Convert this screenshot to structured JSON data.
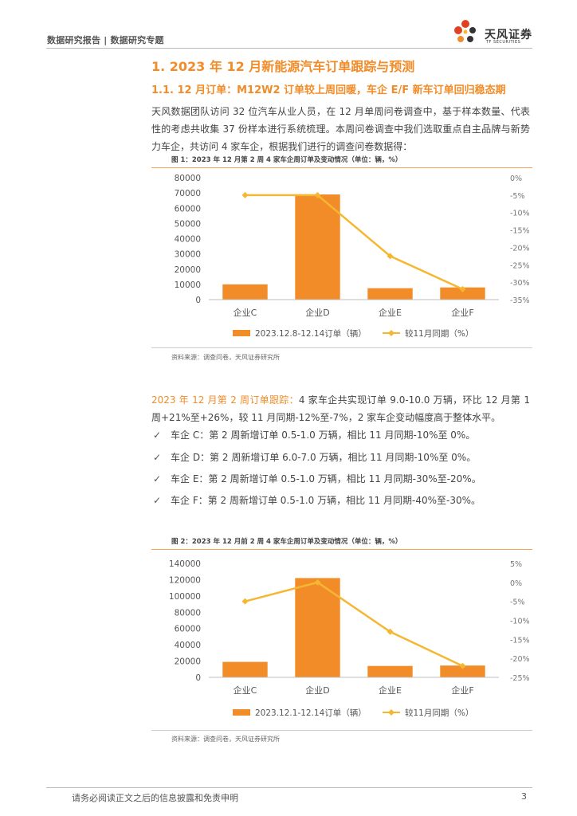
{
  "header": {
    "left_text": "数据研究报告 | 数据研究专题",
    "logo_text": "天风证券",
    "logo_sub": "TF SECURITIES"
  },
  "section": {
    "title": "1. 2023 年 12 月新能源汽车订单跟踪与预测",
    "subtitle": "1.1. 12 月订单：M12W2 订单较上周回暖，车企 E/F 新车订单回归稳态期",
    "paragraph": "天风数据团队访问 32 位汽车从业人员，在 12 月单周问卷调查中，基于样本数量、代表性的考虑共收集 37 份样本进行系统梳理。本周问卷调查中我们选取重点自主品牌与新势力车企，共访问 4 家车企，根据我们进行的调查问卷数据得："
  },
  "figure1": {
    "title": "图 1：2023 年 12 月第 2 周 4 家车企周订单及变动情况（单位：辆，%）",
    "source": "资料来源：调查问卷，天风证券研究所"
  },
  "summary": {
    "highlight": "2023 年 12 月第 2 周订单跟踪：",
    "text": "4 家车企共实现订单 9.0-10.0 万辆，环比 12 月第 1 周+21%至+26%，较 11 月同期-12%至-7%，2 家车企变动幅度高于整体水平。"
  },
  "bullets": [
    {
      "check": "✓",
      "text": "车企 C：第 2 周新增订单 0.5-1.0 万辆，相比 11 月同期-10%至 0%。"
    },
    {
      "check": "✓",
      "text": "车企 D：第 2 周新增订单 6.0-7.0 万辆，相比 11 月同期-10%至 0%。"
    },
    {
      "check": "✓",
      "text": "车企 E：第 2 周新增订单 0.5-1.0 万辆，相比 11 月同期-30%至-20%。"
    },
    {
      "check": "✓",
      "text": "车企 F：第 2 周新增订单 0.5-1.0 万辆，相比 11 月同期-40%至-30%。"
    }
  ],
  "figure2": {
    "title": "图 2：2023 年 12 月前 2 周 4 家车企周订单及变动情况（单位：辆，%）",
    "source": "资料来源：调查问卷，天风证券研究所"
  },
  "footer": {
    "disclaimer": "请务必阅读正文之后的信息披露和免责申明",
    "page": "3"
  },
  "colors": {
    "accent": "#f28c28",
    "bar": "#f28c28",
    "line": "#f5b731"
  },
  "chart_data": [
    {
      "type": "bar",
      "categories": [
        "企业C",
        "企业D",
        "企业E",
        "企业F"
      ],
      "series": [
        {
          "name": "2023.12.8-12.14订单（辆）",
          "type": "bar",
          "axis": "left",
          "values": [
            10000,
            69000,
            7500,
            8000
          ]
        },
        {
          "name": "较11月同期（%）",
          "type": "line",
          "axis": "right",
          "values": [
            -5,
            -5,
            -22.5,
            -32
          ]
        }
      ],
      "ylim": [
        0,
        80000
      ],
      "yticks": [
        "80000",
        "70000",
        "60000",
        "50000",
        "40000",
        "30000",
        "20000",
        "10000",
        "0"
      ],
      "y2lim": [
        -35,
        0
      ],
      "y2ticks": [
        "0%",
        "-5%",
        "-10%",
        "-15%",
        "-20%",
        "-25%",
        "-30%",
        "-35%"
      ],
      "legend": "bottom"
    },
    {
      "type": "bar",
      "categories": [
        "企业C",
        "企业D",
        "企业E",
        "企业F"
      ],
      "series": [
        {
          "name": "2023.12.1-12.14订单（辆）",
          "type": "bar",
          "axis": "left",
          "values": [
            19000,
            122000,
            14000,
            14500
          ]
        },
        {
          "name": "较11月同期（%）",
          "type": "line",
          "axis": "right",
          "values": [
            -5,
            0,
            -13,
            -22
          ]
        }
      ],
      "ylim": [
        0,
        140000
      ],
      "yticks": [
        "140000",
        "120000",
        "100000",
        "80000",
        "60000",
        "40000",
        "20000",
        "0"
      ],
      "y2lim": [
        -25,
        5
      ],
      "y2ticks": [
        "5%",
        "0%",
        "-5%",
        "-10%",
        "-15%",
        "-20%",
        "-25%"
      ],
      "legend": "bottom"
    }
  ]
}
